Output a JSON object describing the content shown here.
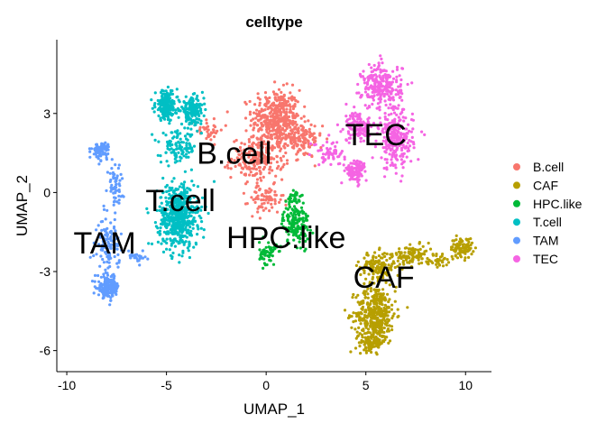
{
  "chart_data": {
    "type": "scatter",
    "title": "celltype",
    "xlabel": "UMAP_1",
    "ylabel": "UMAP_2",
    "xlim": [
      -10.5,
      11.3
    ],
    "ylim": [
      -6.8,
      5.8
    ],
    "xticks": [
      -10,
      -5,
      0,
      5,
      10
    ],
    "yticks": [
      -6,
      -3,
      0,
      3
    ],
    "grid": false,
    "legend_position": "right",
    "series": [
      {
        "name": "B.cell",
        "color": "#F8766D",
        "centroid_label": "B.cell",
        "label_at": [
          -1.6,
          1.5
        ],
        "blobs": [
          {
            "cx": 0.5,
            "cy": 2.8,
            "sx": 1.1,
            "sy": 1.0,
            "n": 420
          },
          {
            "cx": -0.4,
            "cy": 1.3,
            "sx": 1.2,
            "sy": 0.7,
            "n": 220
          },
          {
            "cx": 1.7,
            "cy": 2.0,
            "sx": 1.0,
            "sy": 0.6,
            "n": 120
          },
          {
            "cx": 0.0,
            "cy": -0.3,
            "sx": 0.8,
            "sy": 0.5,
            "n": 70
          },
          {
            "cx": -3.0,
            "cy": 2.4,
            "sx": 0.8,
            "sy": 0.4,
            "n": 40
          }
        ]
      },
      {
        "name": "CAF",
        "color": "#B79F00",
        "centroid_label": "CAF",
        "label_at": [
          5.9,
          -3.2
        ],
        "blobs": [
          {
            "cx": 5.5,
            "cy": -4.6,
            "sx": 0.9,
            "sy": 1.0,
            "n": 380
          },
          {
            "cx": 5.3,
            "cy": -5.7,
            "sx": 0.6,
            "sy": 0.3,
            "n": 90
          },
          {
            "cx": 5.6,
            "cy": -2.8,
            "sx": 0.8,
            "sy": 0.5,
            "n": 150
          },
          {
            "cx": 7.4,
            "cy": -2.4,
            "sx": 0.9,
            "sy": 0.35,
            "n": 110
          },
          {
            "cx": 9.8,
            "cy": -2.1,
            "sx": 0.5,
            "sy": 0.35,
            "n": 90
          },
          {
            "cx": 8.7,
            "cy": -2.6,
            "sx": 0.4,
            "sy": 0.2,
            "n": 30
          }
        ]
      },
      {
        "name": "HPC.like",
        "color": "#00BA38",
        "centroid_label": "HPC.like",
        "label_at": [
          1.0,
          -1.7
        ],
        "blobs": [
          {
            "cx": 1.5,
            "cy": -1.2,
            "sx": 0.6,
            "sy": 0.7,
            "n": 160
          },
          {
            "cx": 0.1,
            "cy": -2.3,
            "sx": 0.4,
            "sy": 0.4,
            "n": 60
          },
          {
            "cx": 1.5,
            "cy": -0.2,
            "sx": 0.4,
            "sy": 0.3,
            "n": 30
          }
        ]
      },
      {
        "name": "T.cell",
        "color": "#00BFC4",
        "centroid_label": "T.cell",
        "label_at": [
          -4.3,
          -0.3
        ],
        "blobs": [
          {
            "cx": -4.4,
            "cy": -0.9,
            "sx": 0.9,
            "sy": 1.1,
            "n": 560
          },
          {
            "cx": -5.0,
            "cy": 3.3,
            "sx": 0.5,
            "sy": 0.5,
            "n": 220
          },
          {
            "cx": -3.7,
            "cy": 3.1,
            "sx": 0.5,
            "sy": 0.45,
            "n": 160
          },
          {
            "cx": -4.4,
            "cy": 1.7,
            "sx": 0.8,
            "sy": 0.55,
            "n": 110
          }
        ]
      },
      {
        "name": "TAM",
        "color": "#619CFF",
        "centroid_label": "TAM",
        "label_at": [
          -8.1,
          -1.9
        ],
        "blobs": [
          {
            "cx": -7.9,
            "cy": -3.6,
            "sx": 0.5,
            "sy": 0.35,
            "n": 180
          },
          {
            "cx": -7.9,
            "cy": -2.0,
            "sx": 0.5,
            "sy": 0.9,
            "n": 120
          },
          {
            "cx": -8.3,
            "cy": 1.6,
            "sx": 0.4,
            "sy": 0.3,
            "n": 80
          },
          {
            "cx": -7.6,
            "cy": 0.3,
            "sx": 0.4,
            "sy": 0.7,
            "n": 60
          },
          {
            "cx": -6.5,
            "cy": -2.4,
            "sx": 0.4,
            "sy": 0.2,
            "n": 25
          }
        ]
      },
      {
        "name": "TEC",
        "color": "#F564E3",
        "centroid_label": "TEC",
        "label_at": [
          5.5,
          2.2
        ],
        "blobs": [
          {
            "cx": 5.8,
            "cy": 4.0,
            "sx": 0.9,
            "sy": 0.8,
            "n": 260
          },
          {
            "cx": 6.5,
            "cy": 2.0,
            "sx": 0.8,
            "sy": 1.0,
            "n": 240
          },
          {
            "cx": 4.6,
            "cy": 2.5,
            "sx": 0.6,
            "sy": 0.5,
            "n": 120
          },
          {
            "cx": 4.5,
            "cy": 0.8,
            "sx": 0.5,
            "sy": 0.4,
            "n": 100
          },
          {
            "cx": 3.2,
            "cy": 1.5,
            "sx": 0.7,
            "sy": 0.4,
            "n": 60
          }
        ]
      }
    ]
  }
}
